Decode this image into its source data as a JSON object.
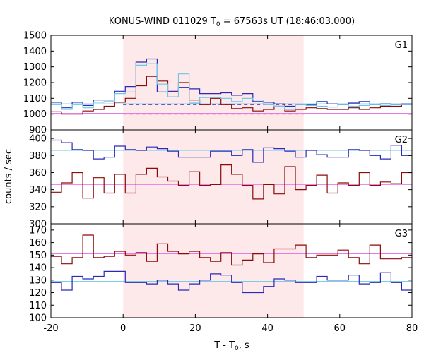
{
  "chart_data": {
    "type": "line",
    "title_main": "KONUS-WIND 011029 T",
    "title_sub": "0",
    "title_rest": " = 67563s UT (18:46:03.000)",
    "xlabel_main": "T - T",
    "xlabel_sub": "0",
    "xlabel_rest": ", s",
    "ylabel": "counts / sec",
    "xlim": [
      -20,
      80
    ],
    "x_ticks": [
      -20,
      0,
      20,
      40,
      60,
      80
    ],
    "x_tick_labels": [
      "-20",
      "0",
      "20",
      "40",
      "60",
      "80"
    ],
    "shaded_interval": [
      0,
      50
    ],
    "bin_width": 2.944,
    "bin_start": -20,
    "colors": {
      "blue": "#2a2ab8",
      "red": "#8b0a0a",
      "light_blue": "#6cc6e8",
      "pink": "#e87ae8",
      "shade": "#fde8ea"
    },
    "panels": [
      {
        "label": "G1",
        "ylim": [
          900,
          1500
        ],
        "y_ticks": [
          900,
          1000,
          1100,
          1200,
          1300,
          1400,
          1500
        ],
        "y_tick_labels": [
          "900",
          "1000",
          "1100",
          "1200",
          "1300",
          "1400",
          "1500"
        ],
        "series": [
          {
            "color": "blue",
            "values": [
              1075,
              1040,
              1075,
              1055,
              1090,
              1090,
              1145,
              1175,
              1330,
              1350,
              1140,
              1145,
              1170,
              1160,
              1130,
              1130,
              1135,
              1120,
              1130,
              1080,
              1075,
              1065,
              1050,
              1060,
              1060,
              1080,
              1065,
              1060,
              1070,
              1080,
              1060,
              1065,
              1060,
              1065
            ]
          },
          {
            "color": "red",
            "values": [
              1015,
              1000,
              1000,
              1020,
              1030,
              1050,
              1075,
              1100,
              1180,
              1240,
              1210,
              1140,
              1200,
              1090,
              1060,
              1100,
              1060,
              1035,
              1040,
              1020,
              1030,
              1050,
              1020,
              1030,
              1040,
              1035,
              1030,
              1030,
              1040,
              1030,
              1040,
              1050,
              1050,
              1060
            ]
          },
          {
            "color": "light_blue",
            "values": [
              1060,
              1030,
              1060,
              1040,
              1075,
              1080,
              1130,
              1140,
              1310,
              1320,
              1190,
              1110,
              1255,
              1070,
              1105,
              1105,
              1100,
              1080,
              1100,
              1090,
              1060,
              1050,
              1030,
              1060,
              1055,
              1050,
              1045,
              1060,
              1050,
              1055,
              1060,
              1055,
              1060,
              1060
            ]
          }
        ],
        "hlines": [
          {
            "color": "light_blue",
            "y": 1065,
            "range": [
              -20,
              80
            ],
            "dashed": false
          },
          {
            "color": "pink",
            "y": 1005,
            "range": [
              -20,
              80
            ],
            "dashed": false
          },
          {
            "color": "blue",
            "y": 1060,
            "range": [
              0,
              50
            ],
            "dashed": true
          },
          {
            "color": "red",
            "y": 1000,
            "range": [
              0,
              50
            ],
            "dashed": true
          }
        ]
      },
      {
        "label": "G2",
        "ylim": [
          300,
          410
        ],
        "y_ticks": [
          300,
          320,
          340,
          360,
          380,
          400
        ],
        "y_tick_labels": [
          "300",
          "320",
          "340",
          "360",
          "380",
          "400"
        ],
        "series": [
          {
            "color": "blue",
            "values": [
              398,
              395,
              387,
              386,
              376,
              378,
              391,
              387,
              386,
              390,
              388,
              385,
              378,
              378,
              378,
              385,
              385,
              380,
              387,
              372,
              389,
              388,
              385,
              378,
              386,
              381,
              378,
              378,
              387,
              386,
              380,
              376,
              392,
              380
            ]
          },
          {
            "color": "red",
            "values": [
              337,
              348,
              360,
              330,
              354,
              336,
              358,
              336,
              358,
              365,
              355,
              350,
              345,
              361,
              345,
              346,
              369,
              358,
              345,
              329,
              346,
              335,
              367,
              340,
              345,
              357,
              336,
              348,
              345,
              360,
              345,
              349,
              347,
              360
            ]
          }
        ],
        "hlines": [
          {
            "color": "light_blue",
            "y": 386,
            "range": [
              -20,
              80
            ],
            "dashed": false
          },
          {
            "color": "pink",
            "y": 346,
            "range": [
              -20,
              80
            ],
            "dashed": false
          }
        ]
      },
      {
        "label": "G3",
        "ylim": [
          100,
          175
        ],
        "y_ticks": [
          100,
          110,
          120,
          130,
          140,
          150,
          160,
          170
        ],
        "y_tick_labels": [
          "100",
          "110",
          "120",
          "130",
          "140",
          "150",
          "160",
          "170"
        ],
        "series": [
          {
            "color": "red",
            "values": [
              149,
              143,
              148,
              166,
              148,
              149,
              153,
              150,
              152,
              145,
              159,
              153,
              151,
              153,
              148,
              145,
              152,
              142,
              146,
              151,
              144,
              155,
              155,
              158,
              148,
              150,
              150,
              154,
              148,
              143,
              158,
              147,
              147,
              148
            ]
          },
          {
            "color": "blue",
            "values": [
              128,
              122,
              133,
              131,
              133,
              137,
              137,
              128,
              128,
              127,
              130,
              127,
              122,
              127,
              130,
              135,
              134,
              128,
              120,
              120,
              125,
              131,
              130,
              128,
              128,
              133,
              130,
              130,
              134,
              127,
              128,
              136,
              128,
              122
            ]
          }
        ],
        "hlines": [
          {
            "color": "pink",
            "y": 151,
            "range": [
              -20,
              80
            ],
            "dashed": false
          },
          {
            "color": "light_blue",
            "y": 129,
            "range": [
              -20,
              80
            ],
            "dashed": false
          }
        ]
      }
    ]
  }
}
